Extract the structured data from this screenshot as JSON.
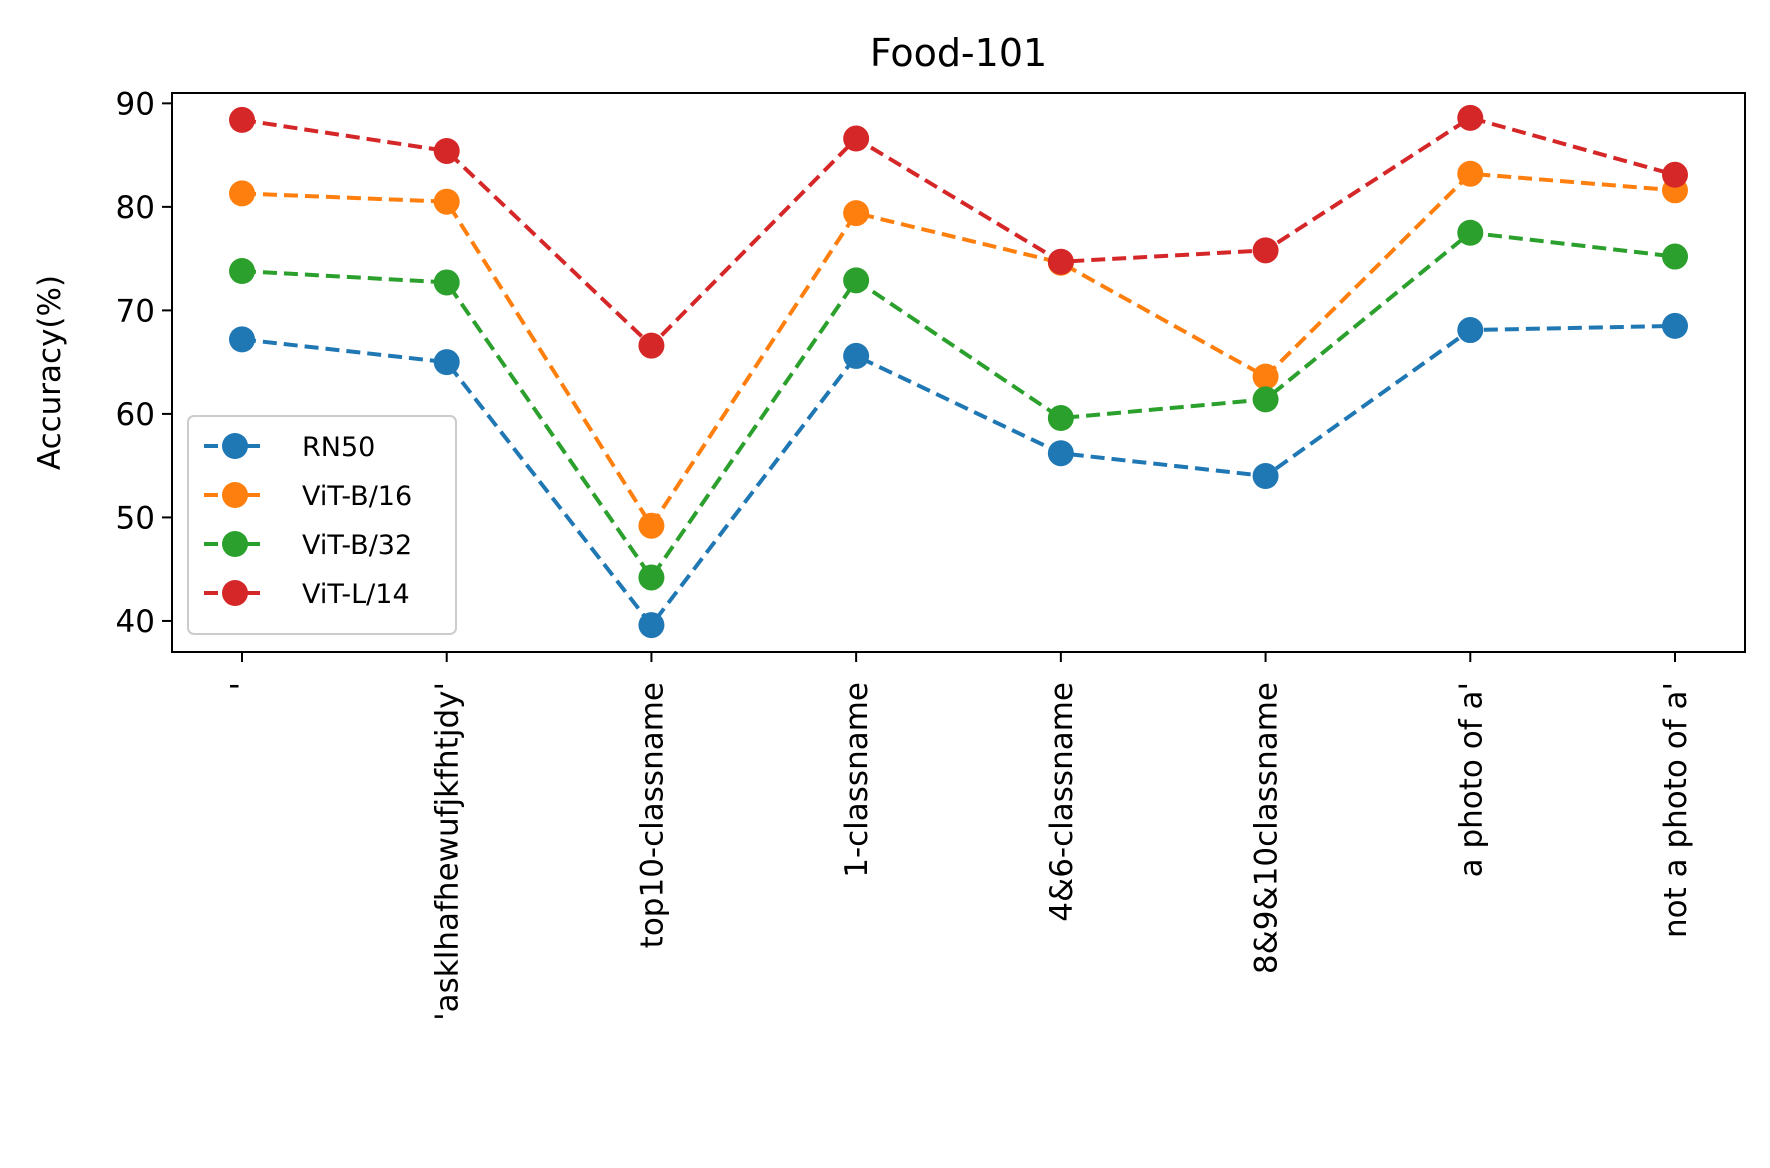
{
  "chart_data": {
    "type": "line",
    "title": "Food-101",
    "xlabel": "",
    "ylabel": "Accuracy(%)",
    "ylim": [
      37,
      91
    ],
    "yticks": [
      40,
      50,
      60,
      70,
      80,
      90
    ],
    "grid": false,
    "legend_placement": "lower-left",
    "categories": [
      "'",
      "'asklhafhewufjkfhtjdy'",
      "top10-classname",
      "1-classname",
      "4&6-classname",
      "8&9&10classname",
      "a photo of a'",
      "not a photo of a'"
    ],
    "series": [
      {
        "name": "RN50",
        "color": "#1f77b4",
        "values": [
          67.2,
          65.0,
          39.6,
          65.6,
          56.2,
          54.0,
          68.1,
          68.5
        ]
      },
      {
        "name": "ViT-B/16",
        "color": "#ff7f0e",
        "values": [
          81.3,
          80.5,
          49.2,
          79.4,
          74.6,
          63.6,
          83.2,
          81.6
        ]
      },
      {
        "name": "ViT-B/32",
        "color": "#2ca02c",
        "values": [
          73.8,
          72.7,
          44.2,
          72.9,
          59.6,
          61.4,
          77.5,
          75.2
        ]
      },
      {
        "name": "ViT-L/14",
        "color": "#d62728",
        "values": [
          88.4,
          85.4,
          66.6,
          86.6,
          74.7,
          75.8,
          88.6,
          83.1
        ]
      }
    ]
  }
}
